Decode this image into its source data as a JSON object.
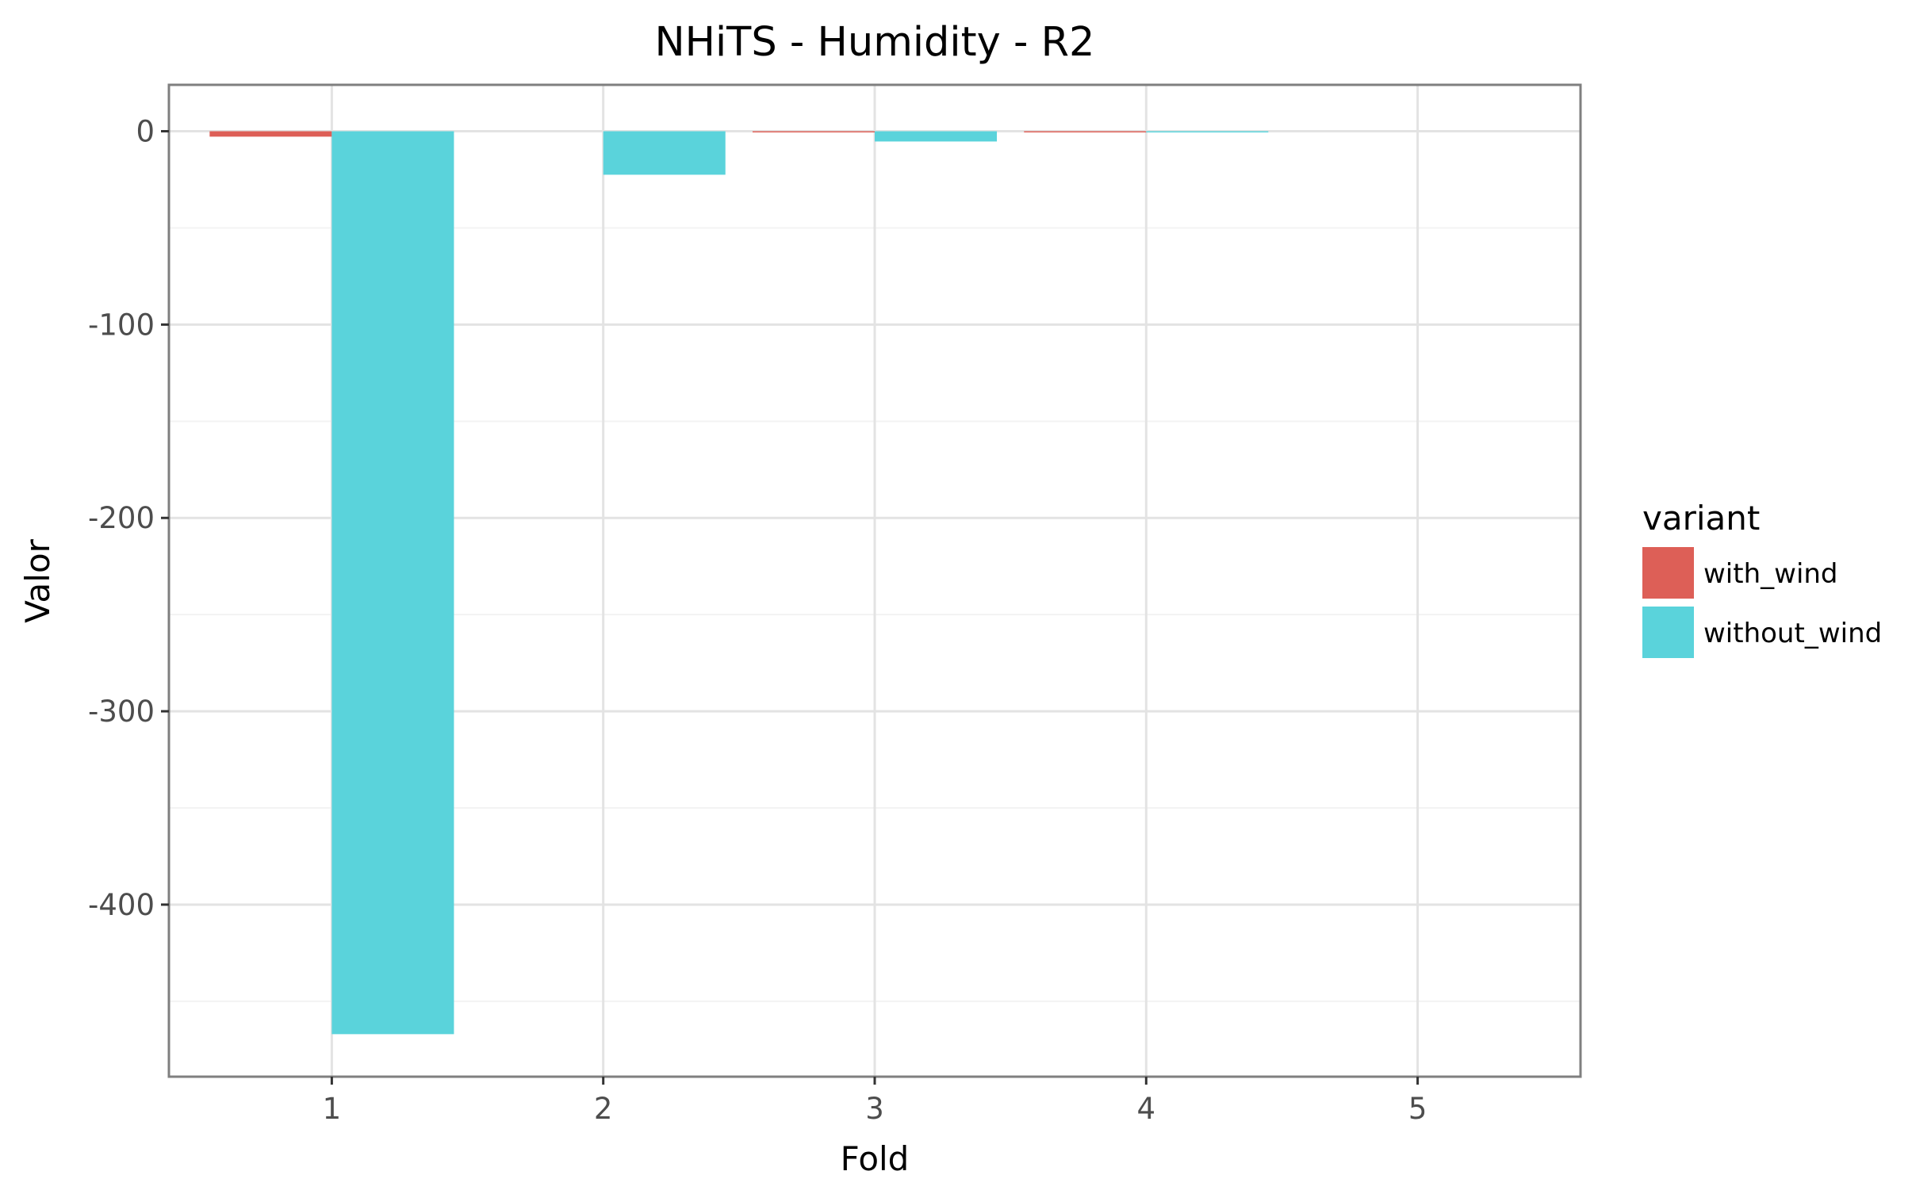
{
  "chart_data": {
    "type": "bar",
    "title": "NHiTS - Humidity - R2",
    "xlabel": "Fold",
    "ylabel": "Valor",
    "categories": [
      "1",
      "2",
      "3",
      "4",
      "5"
    ],
    "yticks": [
      0,
      -100,
      -200,
      -300,
      -400
    ],
    "ytick_labels": [
      "0",
      "-100",
      "-200",
      "-300",
      "-400"
    ],
    "ylim": [
      -489,
      24
    ],
    "grid": true,
    "legend": {
      "title": "variant",
      "position": "right"
    },
    "series": [
      {
        "name": "with_wind",
        "color": "#dd5f57",
        "values": [
          -2.8,
          0,
          -0.4,
          -0.3,
          0
        ]
      },
      {
        "name": "without_wind",
        "color": "#5ad3db",
        "values": [
          -467,
          -22.5,
          -5.3,
          -0.5,
          0
        ]
      }
    ]
  }
}
